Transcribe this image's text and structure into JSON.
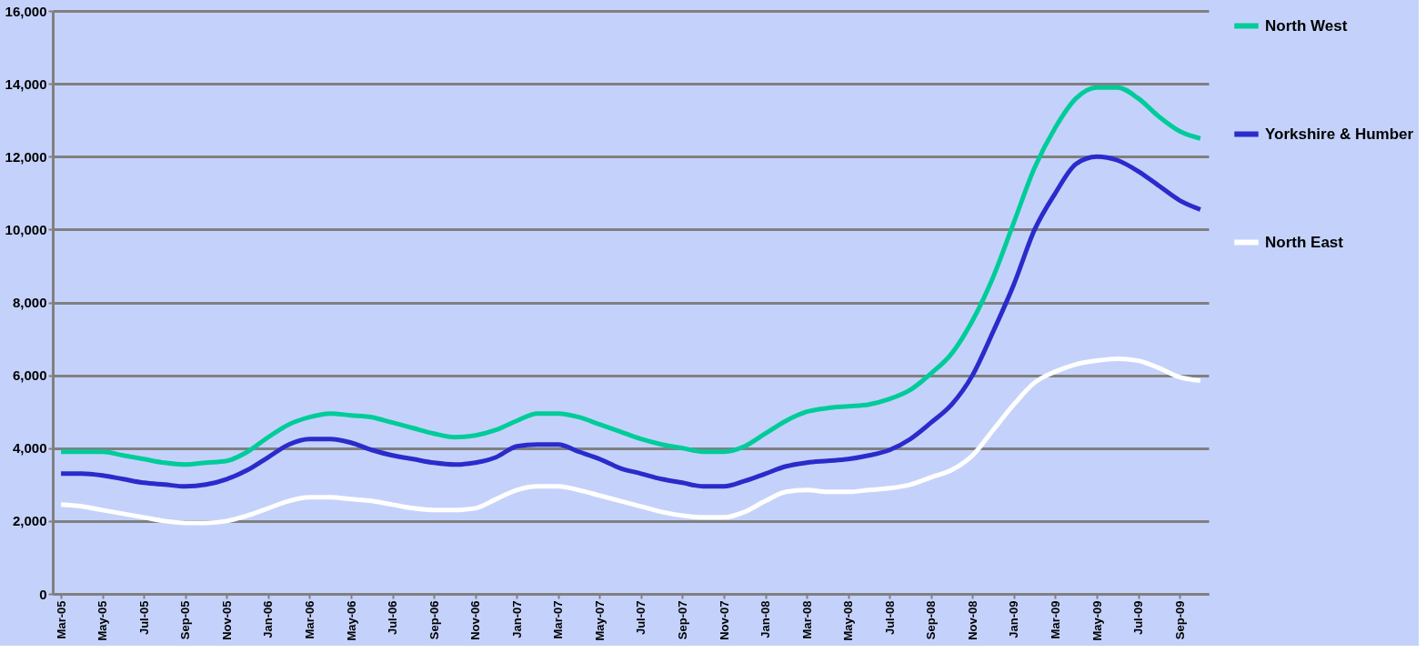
{
  "chart_data": {
    "type": "line",
    "categories": [
      "Mar-05",
      null,
      "May-05",
      null,
      "Jul-05",
      null,
      "Sep-05",
      null,
      "Nov-05",
      null,
      "Jan-06",
      null,
      "Mar-06",
      null,
      "May-06",
      null,
      "Jul-06",
      null,
      "Sep-06",
      null,
      "Nov-06",
      null,
      "Jan-07",
      null,
      "Mar-07",
      null,
      "May-07",
      null,
      "Jul-07",
      null,
      "Sep-07",
      null,
      "Nov-07",
      null,
      "Jan-08",
      null,
      "Mar-08",
      null,
      "May-08",
      null,
      "Jul-08",
      null,
      "Sep-08",
      null,
      "Nov-08",
      null,
      "Jan-09",
      null,
      "Mar-09",
      null,
      "May-09",
      null,
      "Jul-09",
      null,
      "Sep-09",
      null
    ],
    "series": [
      {
        "name": "North West",
        "color": "#00cc99",
        "values": [
          3900,
          3900,
          3900,
          3800,
          3700,
          3600,
          3550,
          3600,
          3650,
          3900,
          4300,
          4650,
          4850,
          4950,
          4900,
          4850,
          4700,
          4550,
          4400,
          4300,
          4350,
          4500,
          4750,
          4950,
          4950,
          4850,
          4650,
          4450,
          4250,
          4100,
          4000,
          3900,
          3900,
          4050,
          4400,
          4750,
          5000,
          5100,
          5150,
          5200,
          5350,
          5600,
          6050,
          6600,
          7500,
          8700,
          10200,
          11700,
          12800,
          13600,
          13900,
          13900,
          13600,
          13100,
          12700,
          12500
        ]
      },
      {
        "name": "Yorkshire & Humber",
        "color": "#2b2bcc",
        "values": [
          3300,
          3300,
          3250,
          3150,
          3050,
          3000,
          2950,
          3000,
          3150,
          3400,
          3750,
          4100,
          4250,
          4250,
          4150,
          3950,
          3800,
          3700,
          3600,
          3550,
          3600,
          3750,
          4050,
          4100,
          4100,
          3900,
          3700,
          3450,
          3300,
          3150,
          3050,
          2950,
          2950,
          3100,
          3300,
          3500,
          3600,
          3650,
          3700,
          3800,
          3950,
          4250,
          4700,
          5200,
          6000,
          7200,
          8500,
          10000,
          11000,
          11800,
          12000,
          11900,
          11600,
          11200,
          10800,
          10550
        ]
      },
      {
        "name": "North East",
        "color": "#ffffff",
        "values": [
          2450,
          2400,
          2300,
          2200,
          2100,
          2000,
          1950,
          1950,
          2000,
          2150,
          2350,
          2550,
          2650,
          2650,
          2600,
          2550,
          2450,
          2350,
          2300,
          2300,
          2350,
          2600,
          2850,
          2950,
          2950,
          2850,
          2700,
          2550,
          2400,
          2250,
          2150,
          2100,
          2100,
          2250,
          2550,
          2800,
          2850,
          2800,
          2800,
          2850,
          2900,
          3000,
          3200,
          3400,
          3800,
          4500,
          5200,
          5800,
          6100,
          6300,
          6400,
          6450,
          6400,
          6200,
          5950,
          5850
        ]
      }
    ],
    "ylim": [
      0,
      16000
    ],
    "yticks": [
      {
        "value": 0,
        "label": "0"
      },
      {
        "value": 2000,
        "label": "2,000"
      },
      {
        "value": 4000,
        "label": "4,000"
      },
      {
        "value": 6000,
        "label": "6,000"
      },
      {
        "value": 8000,
        "label": "8,000"
      },
      {
        "value": 10000,
        "label": "10,000"
      },
      {
        "value": 12000,
        "label": "12,000"
      },
      {
        "value": 14000,
        "label": "14,000"
      },
      {
        "value": 16000,
        "label": "16,000"
      }
    ],
    "grid": "y",
    "legend": "right",
    "marker": "none",
    "line_style": "solid"
  }
}
